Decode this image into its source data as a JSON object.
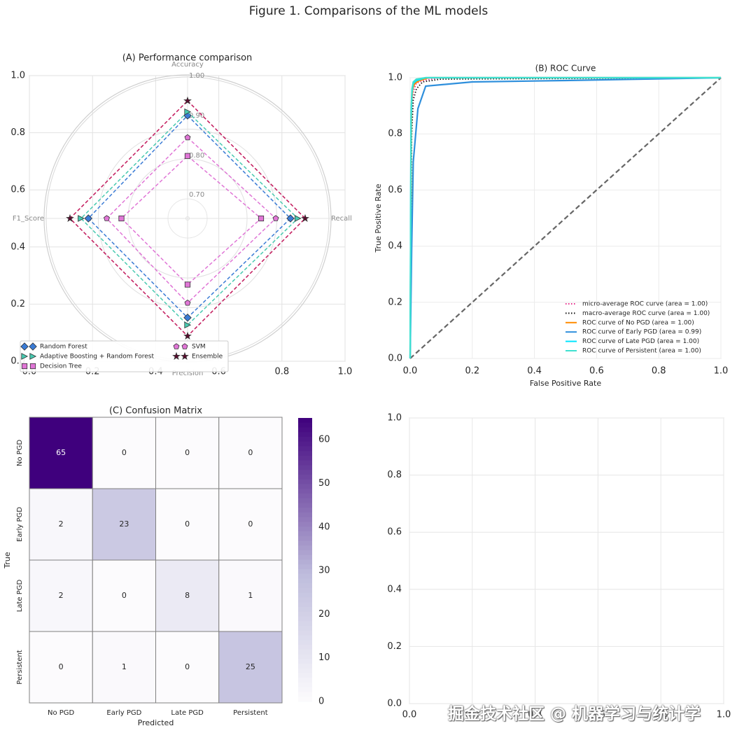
{
  "figure": {
    "title": "Figure 1. Comparisons of the ML models",
    "watermark": "掘金技术社区 @ 机器学习与统计学"
  },
  "chart_data": [
    {
      "panel": "A",
      "type": "radar",
      "title": "(A) Performance comparison",
      "axes": [
        "Accuracy",
        "Recall",
        "Precision",
        "F1_Score"
      ],
      "radial_ticks": [
        "0.70",
        "0.80",
        "0.90",
        "1.00"
      ],
      "radial_range": [
        0.6,
        1.0
      ],
      "background_axis_ticks": [
        "0.0",
        "0.2",
        "0.4",
        "0.6",
        "0.8",
        "1.0"
      ],
      "background_xlim": [
        0,
        1
      ],
      "background_ylim": [
        0,
        1
      ],
      "legend_position": "lower-left",
      "series": [
        {
          "name": "Random Forest",
          "color": "#3a7bd5",
          "marker": "diamond",
          "values": [
            0.88,
            0.88,
            0.87,
            0.87
          ]
        },
        {
          "name": "Adaptive Boosting + Random Forest",
          "color": "#48c9b0",
          "marker": "triangle",
          "values": [
            0.89,
            0.9,
            0.89,
            0.89
          ]
        },
        {
          "name": "Decision Tree",
          "color": "#e076d6",
          "marker": "square",
          "values": [
            0.77,
            0.8,
            0.78,
            0.78
          ]
        },
        {
          "name": "SVM",
          "color": "#e076d6",
          "marker": "pentagon",
          "values": [
            0.82,
            0.84,
            0.83,
            0.82
          ]
        },
        {
          "name": "Ensemble",
          "color": "#c2185b",
          "marker": "star",
          "values": [
            0.92,
            0.92,
            0.92,
            0.92
          ]
        }
      ]
    },
    {
      "panel": "B",
      "type": "line",
      "title": "(B) ROC Curve",
      "xlabel": "False Positive Rate",
      "ylabel": "True Positive Rate",
      "xlim": [
        0,
        1
      ],
      "ylim": [
        0,
        1
      ],
      "ticks": [
        "0.0",
        "0.2",
        "0.4",
        "0.6",
        "0.8",
        "1.0"
      ],
      "grid": true,
      "legend_position": "lower-right",
      "diagonal": {
        "color": "#666666"
      },
      "series": [
        {
          "name": "micro-average ROC curve (area = 1.00)",
          "color": "#e7298a",
          "style": "dotted",
          "x": [
            0,
            0.005,
            0.01,
            0.02,
            0.04,
            0.1,
            1.0
          ],
          "y": [
            0,
            0.85,
            0.95,
            0.98,
            0.99,
            1.0,
            1.0
          ]
        },
        {
          "name": "macro-average ROC curve (area = 1.00)",
          "color": "#111111",
          "style": "dotted",
          "x": [
            0,
            0.005,
            0.01,
            0.02,
            0.04,
            0.1,
            1.0
          ],
          "y": [
            0,
            0.8,
            0.92,
            0.96,
            0.985,
            0.995,
            1.0
          ]
        },
        {
          "name": "ROC curve of No PGD (area = 1.00)",
          "color": "#ff8c00",
          "style": "solid",
          "x": [
            0,
            0.004,
            0.008,
            0.015,
            0.03,
            0.06,
            1.0
          ],
          "y": [
            0,
            0.9,
            0.96,
            0.98,
            0.99,
            1.0,
            1.0
          ]
        },
        {
          "name": "ROC curve of Early PGD (area = 0.99)",
          "color": "#2e8fdc",
          "style": "solid",
          "x": [
            0,
            0.005,
            0.01,
            0.025,
            0.05,
            0.1,
            0.2,
            0.5,
            1.0
          ],
          "y": [
            0,
            0.4,
            0.7,
            0.89,
            0.97,
            0.975,
            0.985,
            0.99,
            1.0
          ]
        },
        {
          "name": "ROC curve of Late PGD (area = 1.00)",
          "color": "#00e5ff",
          "style": "solid",
          "x": [
            0,
            0.003,
            0.006,
            0.01,
            0.02,
            0.05,
            1.0
          ],
          "y": [
            0,
            0.85,
            0.95,
            0.98,
            0.99,
            1.0,
            1.0
          ]
        },
        {
          "name": "ROC curve of Persistent (area = 1.00)",
          "color": "#40e0d0",
          "style": "solid",
          "x": [
            0,
            0.003,
            0.006,
            0.01,
            0.02,
            0.05,
            1.0
          ],
          "y": [
            0,
            0.88,
            0.96,
            0.985,
            0.995,
            1.0,
            1.0
          ]
        }
      ]
    },
    {
      "panel": "C",
      "type": "heatmap",
      "title": "(C) Confusion Matrix",
      "xlabel": "Predicted",
      "ylabel": "True",
      "categories": [
        "No PGD",
        "Early PGD",
        "Late PGD",
        "Persistent"
      ],
      "matrix": [
        [
          65,
          0,
          0,
          0
        ],
        [
          2,
          23,
          0,
          0
        ],
        [
          2,
          0,
          8,
          1
        ],
        [
          0,
          1,
          0,
          25
        ]
      ],
      "colorbar_ticks": [
        "0",
        "10",
        "20",
        "30",
        "40",
        "50",
        "60"
      ],
      "colorbar_range": [
        0,
        65
      ],
      "colormap": [
        "#fcfbfd",
        "#3f007d"
      ]
    },
    {
      "panel": "D",
      "type": "empty",
      "xlim": [
        0,
        1
      ],
      "ylim": [
        0,
        1
      ],
      "ticks": [
        "0.0",
        "0.2",
        "0.4",
        "0.6",
        "0.8",
        "1.0"
      ],
      "grid": true
    }
  ]
}
